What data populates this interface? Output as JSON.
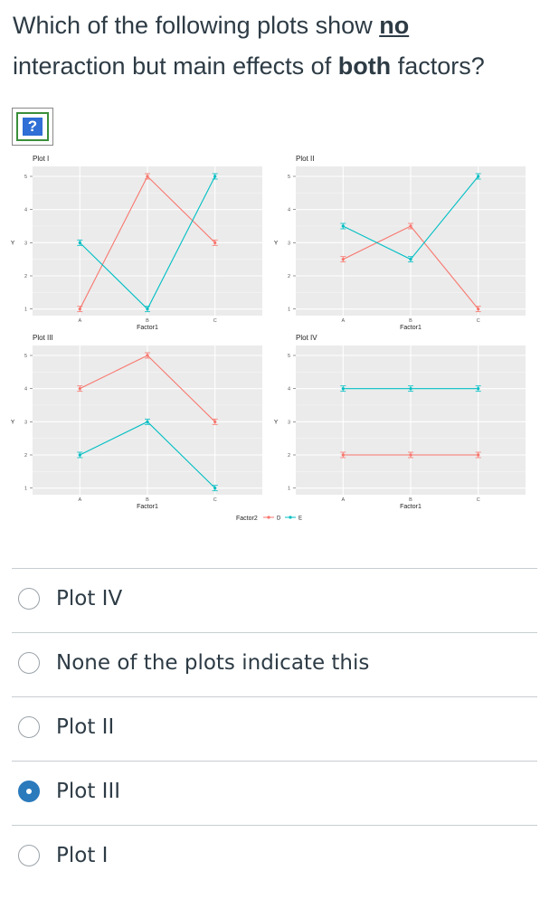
{
  "question": {
    "part1": "Which of the following plots show ",
    "emph_no": "no",
    "part2": "interaction but main effects of ",
    "emph_both": "both",
    "part3": " factors?"
  },
  "help_icon": {
    "glyph": "?",
    "icon": "help-question-icon"
  },
  "chart_data": [
    {
      "type": "line",
      "title": "Plot I",
      "xlabel": "Factor1",
      "ylabel": "Y",
      "categories": [
        "A",
        "B",
        "C"
      ],
      "yticks": [
        1,
        2,
        3,
        4,
        5
      ],
      "ylim": [
        0.8,
        5.3
      ],
      "series": [
        {
          "name": "D",
          "color": "#f8766d",
          "values": [
            1,
            5,
            3
          ]
        },
        {
          "name": "E",
          "color": "#00bfc4",
          "values": [
            3,
            1,
            5
          ]
        }
      ]
    },
    {
      "type": "line",
      "title": "Plot II",
      "xlabel": "Factor1",
      "ylabel": "Y",
      "categories": [
        "A",
        "B",
        "C"
      ],
      "yticks": [
        1,
        2,
        3,
        4,
        5
      ],
      "ylim": [
        0.8,
        5.3
      ],
      "series": [
        {
          "name": "D",
          "color": "#f8766d",
          "values": [
            2.5,
            3.5,
            1
          ]
        },
        {
          "name": "E",
          "color": "#00bfc4",
          "values": [
            3.5,
            2.5,
            5
          ]
        }
      ]
    },
    {
      "type": "line",
      "title": "Plot III",
      "xlabel": "Factor1",
      "ylabel": "Y",
      "categories": [
        "A",
        "B",
        "C"
      ],
      "yticks": [
        1,
        2,
        3,
        4,
        5
      ],
      "ylim": [
        0.8,
        5.3
      ],
      "series": [
        {
          "name": "D",
          "color": "#f8766d",
          "values": [
            4,
            5,
            3
          ]
        },
        {
          "name": "E",
          "color": "#00bfc4",
          "values": [
            2,
            3,
            1
          ]
        }
      ]
    },
    {
      "type": "line",
      "title": "Plot IV",
      "xlabel": "Factor1",
      "ylabel": "Y",
      "categories": [
        "A",
        "B",
        "C"
      ],
      "yticks": [
        1,
        2,
        3,
        4,
        5
      ],
      "ylim": [
        0.8,
        5.3
      ],
      "series": [
        {
          "name": "D",
          "color": "#f8766d",
          "values": [
            2,
            2,
            2
          ]
        },
        {
          "name": "E",
          "color": "#00bfc4",
          "values": [
            4,
            4,
            4
          ]
        }
      ]
    }
  ],
  "legend": {
    "title": "Factor2",
    "items": [
      {
        "name": "D",
        "color": "#f8766d"
      },
      {
        "name": "E",
        "color": "#00bfc4"
      }
    ]
  },
  "options": [
    {
      "label": "Plot IV",
      "selected": false
    },
    {
      "label": "None of the plots indicate this",
      "selected": false
    },
    {
      "label": "Plot II",
      "selected": false
    },
    {
      "label": "Plot III",
      "selected": true
    },
    {
      "label": "Plot I",
      "selected": false
    }
  ]
}
